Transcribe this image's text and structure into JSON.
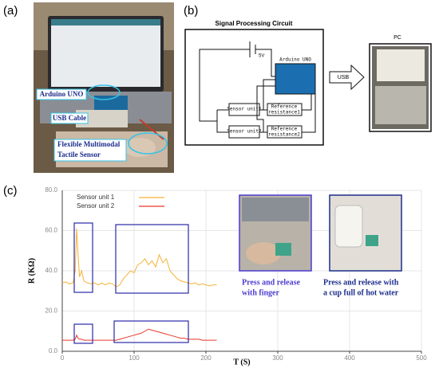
{
  "panel_labels": [
    "(a)",
    "(b)",
    "(c)"
  ],
  "figure_a": {
    "callouts": [
      [
        "Arduino UNO"
      ],
      [
        "USB Cable"
      ],
      [
        "Flexible Multimodal",
        "Tactile Sensor"
      ]
    ]
  },
  "figure_b": {
    "title": "Signal Processing Circuit",
    "voltage": "5V",
    "arduino": "Arduino UNO",
    "usb": "USB",
    "pc": "PC",
    "sensor1": "Sensor unit1",
    "sensor2": "Sensor unit2",
    "ref1": [
      "Reference",
      "resistance1"
    ],
    "ref2": [
      "Reference",
      "resistance2"
    ]
  },
  "figure_c_captions": [
    [
      "Press and release",
      "with finger"
    ],
    [
      "Press and release with",
      "a cup full of hot water"
    ]
  ],
  "chart_data": {
    "type": "line",
    "xlabel": "T (S)",
    "ylabel": "R (KΩ)",
    "x": [
      0,
      5,
      10,
      15,
      18,
      20,
      22,
      24,
      27,
      30,
      35,
      40,
      45,
      50,
      55,
      60,
      65,
      70,
      75,
      80,
      85,
      90,
      95,
      100,
      105,
      110,
      115,
      120,
      125,
      130,
      135,
      140,
      145,
      150,
      155,
      160,
      165,
      170,
      175,
      180,
      185,
      190,
      195,
      200,
      205,
      210,
      215
    ],
    "series": [
      {
        "name": "Sensor unit 1",
        "color": "#f5b335",
        "values": [
          34,
          34.5,
          33.5,
          34,
          40,
          61,
          48,
          37,
          40,
          35,
          34,
          33.5,
          34,
          33,
          34,
          33,
          34,
          33.5,
          32,
          33,
          36,
          38,
          40,
          39,
          43,
          44,
          46,
          43,
          45,
          42,
          48,
          44,
          46,
          40,
          38,
          36,
          35,
          34.5,
          34,
          33.5,
          34,
          33,
          33.5,
          33,
          32.5,
          33,
          33
        ]
      },
      {
        "name": "Sensor unit 2",
        "color": "#e8382a",
        "values": [
          5.5,
          5.5,
          5.5,
          5.5,
          6,
          8,
          6.5,
          6,
          6,
          5.5,
          5.5,
          5.5,
          5.5,
          5.5,
          5.5,
          5.5,
          5.5,
          5.5,
          5.5,
          6,
          6.5,
          7,
          7.5,
          8,
          8.5,
          9,
          10,
          11,
          10.5,
          10,
          9.5,
          9,
          8.5,
          8,
          7.5,
          7,
          6.5,
          6.5,
          6,
          6,
          6,
          6,
          5.5,
          5.5,
          5.5,
          5.5,
          5.5
        ]
      }
    ],
    "xlim": [
      0,
      500
    ],
    "xticks": [
      0,
      100,
      200,
      300,
      400,
      500
    ],
    "ylim": [
      0,
      80
    ],
    "yticks": [
      {
        "value": 0,
        "label": "0.0"
      },
      {
        "value": 20,
        "label": "20.0"
      },
      {
        "value": 40,
        "label": "40.0"
      },
      {
        "value": 60,
        "label": "60.0"
      },
      {
        "value": 80,
        "label": "80.0"
      }
    ],
    "grid": true,
    "legend": "upper left"
  }
}
